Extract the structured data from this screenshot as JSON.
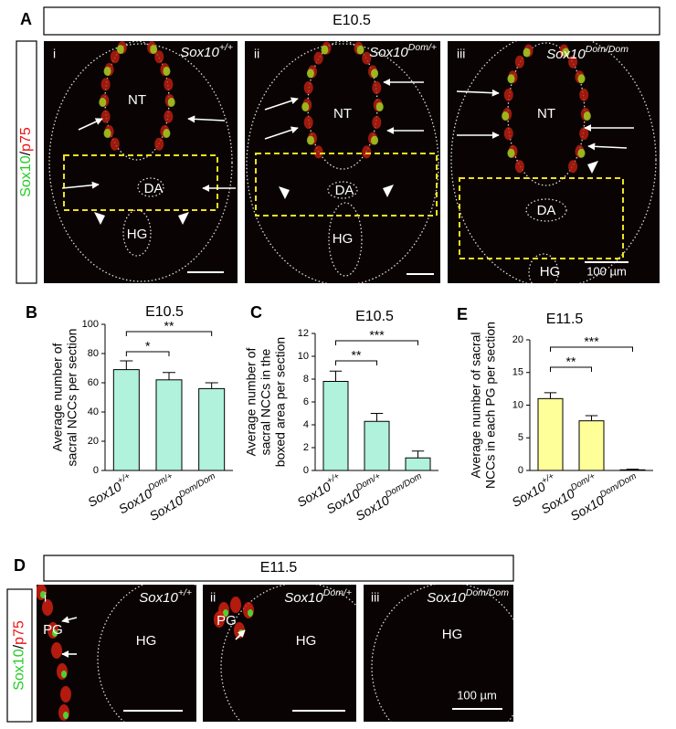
{
  "panel_a": {
    "letter": "A",
    "header": "E10.5",
    "stain": [
      "Sox10",
      "/",
      "p75"
    ],
    "images": [
      {
        "index": "i",
        "genotype": {
          "base": "Sox10",
          "sup": "+/+"
        },
        "labels": [
          "NT",
          "DA",
          "HG"
        ]
      },
      {
        "index": "ii",
        "genotype": {
          "base": "Sox10",
          "sup": "Dom/+"
        },
        "labels": [
          "NT",
          "DA",
          "HG"
        ]
      },
      {
        "index": "iii",
        "genotype": {
          "base": "Sox10",
          "sup": "Dom/Dom"
        },
        "labels": [
          "NT",
          "DA",
          "HG"
        ],
        "scale_bar": "100 µm"
      }
    ]
  },
  "chart_data": [
    {
      "letter": "B",
      "type": "bar",
      "title": "E10.5",
      "ylabel": [
        "Average number of",
        "sacral NCCs per section"
      ],
      "categories": [
        {
          "base": "Sox10",
          "sup": "+/+"
        },
        {
          "base": "Sox10",
          "sup": "Dom/+"
        },
        {
          "base": "Sox10",
          "sup": "Dom/Dom"
        }
      ],
      "values": [
        69,
        62,
        56
      ],
      "errors": [
        6,
        5,
        4
      ],
      "color": "#b0f2dc",
      "ylim": [
        0,
        100
      ],
      "yticks": [
        0,
        20,
        40,
        60,
        80,
        100
      ],
      "significance": [
        {
          "label": "*",
          "from": 0,
          "to": 1
        },
        {
          "label": "**",
          "from": 0,
          "to": 2
        }
      ]
    },
    {
      "letter": "C",
      "type": "bar",
      "title": "E10.5",
      "ylabel": [
        "Average number of",
        "sacral NCCs in the",
        "boxed area per section"
      ],
      "categories": [
        {
          "base": "Sox10",
          "sup": "+/+"
        },
        {
          "base": "Sox10",
          "sup": "Dom/+"
        },
        {
          "base": "Sox10",
          "sup": "Dom/Dom"
        }
      ],
      "values": [
        7.8,
        4.3,
        1.1
      ],
      "errors": [
        0.9,
        0.7,
        0.6
      ],
      "color": "#b0f2dc",
      "ylim": [
        0,
        12
      ],
      "yticks": [
        0,
        2,
        4,
        6,
        8,
        10,
        12
      ],
      "significance": [
        {
          "label": "**",
          "from": 0,
          "to": 1
        },
        {
          "label": "***",
          "from": 0,
          "to": 2
        }
      ]
    },
    {
      "letter": "E",
      "type": "bar",
      "title": "E11.5",
      "ylabel": [
        "Average number of sacral",
        "NCCs in each PG per section"
      ],
      "categories": [
        {
          "base": "Sox10",
          "sup": "+/+"
        },
        {
          "base": "Sox10",
          "sup": "Dom/+"
        },
        {
          "base": "Sox10",
          "sup": "Dom/Dom"
        }
      ],
      "values": [
        11,
        7.6,
        0.1
      ],
      "errors": [
        0.9,
        0.8,
        0.1
      ],
      "color": "#ffff99",
      "ylim": [
        0,
        20
      ],
      "yticks": [
        0,
        5,
        10,
        15,
        20
      ],
      "significance": [
        {
          "label": "**",
          "from": 0,
          "to": 1
        },
        {
          "label": "***",
          "from": 0,
          "to": 2
        }
      ]
    }
  ],
  "panel_d": {
    "letter": "D",
    "header": "E11.5",
    "stain": [
      "Sox10",
      "/",
      "p75"
    ],
    "images": [
      {
        "index": "i",
        "genotype": {
          "base": "Sox10",
          "sup": "+/+"
        },
        "labels": [
          "PG",
          "HG"
        ]
      },
      {
        "index": "ii",
        "genotype": {
          "base": "Sox10",
          "sup": "Dom/+"
        },
        "labels": [
          "PG",
          "HG"
        ]
      },
      {
        "index": "iii",
        "genotype": {
          "base": "Sox10",
          "sup": "Dom/Dom"
        },
        "labels": [
          "HG"
        ],
        "scale_bar": "100 µm"
      }
    ]
  }
}
